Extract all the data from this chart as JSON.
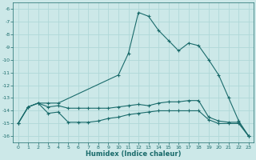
{
  "xlabel": "Humidex (Indice chaleur)",
  "background_color": "#cce8e8",
  "grid_color": "#b0d8d8",
  "line_color": "#1a6b6b",
  "xlim": [
    -0.5,
    23.5
  ],
  "ylim": [
    -16.5,
    -5.5
  ],
  "yticks": [
    -6,
    -7,
    -8,
    -9,
    -10,
    -11,
    -12,
    -13,
    -14,
    -15,
    -16
  ],
  "xticks": [
    0,
    1,
    2,
    3,
    4,
    5,
    6,
    7,
    8,
    9,
    10,
    11,
    12,
    13,
    14,
    15,
    16,
    17,
    18,
    19,
    20,
    21,
    22,
    23
  ],
  "line1_x": [
    0,
    1,
    2,
    3,
    4,
    10,
    11,
    12,
    13,
    14,
    15,
    16,
    17,
    18,
    19,
    20,
    21,
    22,
    23
  ],
  "line1_y": [
    -15.0,
    -13.7,
    -13.4,
    -13.4,
    -13.4,
    -11.2,
    -9.5,
    -6.3,
    -6.6,
    -7.7,
    -8.5,
    -9.3,
    -8.7,
    -8.9,
    -10.0,
    -11.2,
    -13.0,
    -14.8,
    -16.0
  ],
  "line2_x": [
    0,
    1,
    2,
    3,
    4,
    5,
    6,
    7,
    8,
    9,
    10,
    11,
    12,
    13,
    14,
    15,
    16,
    17,
    18,
    19,
    20,
    21,
    22,
    23
  ],
  "line2_y": [
    -15.0,
    -13.7,
    -13.4,
    -13.7,
    -13.6,
    -13.8,
    -13.8,
    -13.8,
    -13.8,
    -13.8,
    -13.7,
    -13.6,
    -13.5,
    -13.6,
    -13.4,
    -13.3,
    -13.3,
    -13.2,
    -13.2,
    -14.5,
    -14.8,
    -14.9,
    -14.9,
    -16.0
  ],
  "line3_x": [
    0,
    1,
    2,
    3,
    4,
    5,
    6,
    7,
    8,
    9,
    10,
    11,
    12,
    13,
    14,
    15,
    16,
    17,
    18,
    19,
    20,
    21,
    22,
    23
  ],
  "line3_y": [
    -15.0,
    -13.7,
    -13.4,
    -14.2,
    -14.1,
    -14.9,
    -14.9,
    -14.9,
    -14.8,
    -14.6,
    -14.5,
    -14.3,
    -14.2,
    -14.1,
    -14.0,
    -14.0,
    -14.0,
    -14.0,
    -14.0,
    -14.7,
    -15.0,
    -15.0,
    -15.0,
    -16.0
  ]
}
